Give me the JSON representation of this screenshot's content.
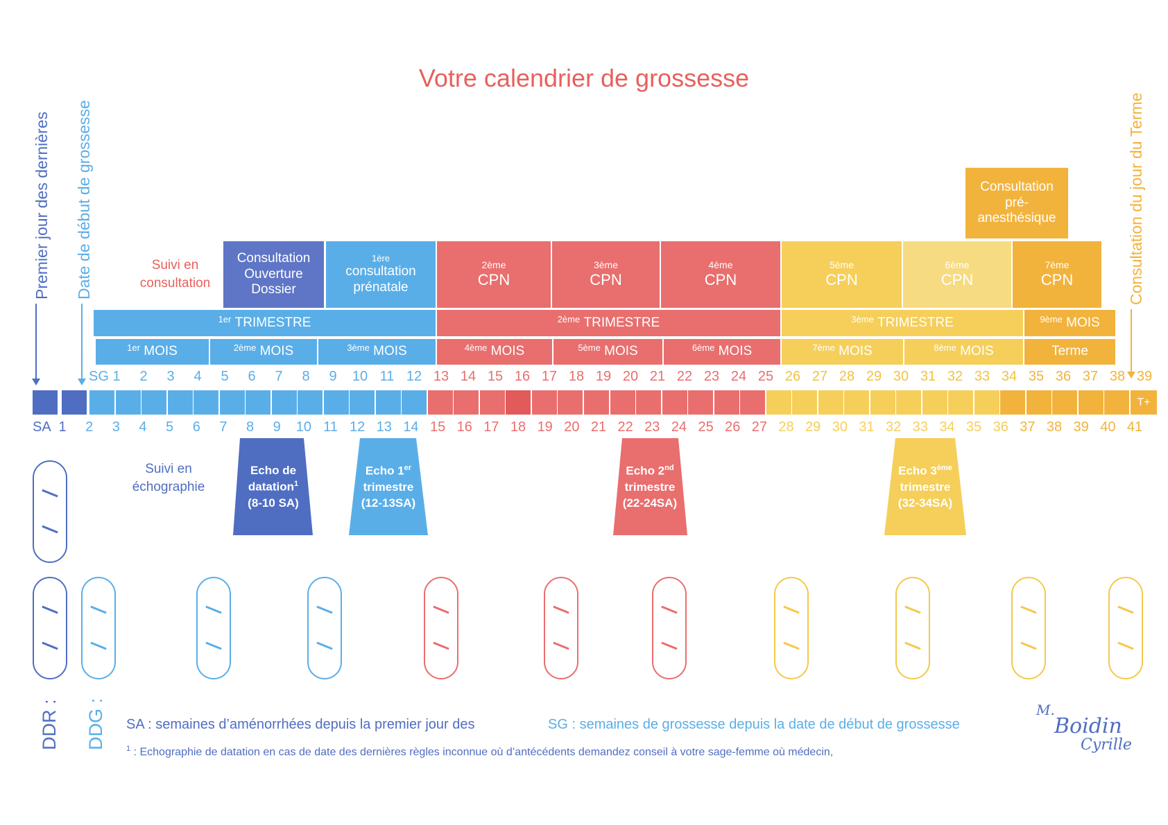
{
  "title": "Votre calendrier de grossesse",
  "colors": {
    "dark_blue": "#4f6ec2",
    "blue": "#5aaee8",
    "red": "#e96e6e",
    "yellow": "#f5cf5a",
    "orange": "#f2b33c",
    "title": "#e8605c"
  },
  "vertical_labels": {
    "ddr_arrow": "Premier jour des dernières",
    "ddg_arrow": "Date de début de grossesse",
    "terme_arrow": "Consultation du jour du Terme"
  },
  "suivi_consultation": "Suivi en consultation",
  "suivi_echographie": "Suivi en échographie",
  "consultations": {
    "c1": "Consultation Ouverture Dossier",
    "c2_sup": "1ère",
    "c2": "consultation prénatale",
    "cpn2_sup": "2ème",
    "cpn3_sup": "3ème",
    "cpn4_sup": "4ème",
    "cpn5_sup": "5ème",
    "cpn6_sup": "6ème",
    "cpn7_sup": "7ème",
    "cpn": "CPN",
    "pre_anesth": "Consultation pré-anesthésique"
  },
  "trimestres": {
    "t1_sup": "1er",
    "t2_sup": "2ème",
    "t3_sup": "3ème",
    "word": "TRIMESTRE",
    "m9_sup": "9ème",
    "mois_word": "MOIS"
  },
  "mois": {
    "m1": "1er",
    "m2": "2ème",
    "m3": "3ème",
    "m4": "4ème",
    "m5": "5ème",
    "m6": "6ème",
    "m7": "7ème",
    "m8": "8ème",
    "word": "MOIS",
    "terme": "Terme"
  },
  "sg_label": "SG",
  "sa_label": "SA",
  "t_plus": "T+",
  "sg_numbers": [
    "1",
    "2",
    "3",
    "4",
    "5",
    "6",
    "7",
    "8",
    "9",
    "10",
    "11",
    "12",
    "13",
    "14",
    "15",
    "16",
    "17",
    "18",
    "19",
    "20",
    "21",
    "22",
    "23",
    "24",
    "25",
    "26",
    "27",
    "28",
    "29",
    "30",
    "31",
    "32",
    "33",
    "34",
    "35",
    "36",
    "37",
    "38",
    "39"
  ],
  "sa_numbers": [
    "1",
    "2",
    "3",
    "4",
    "5",
    "6",
    "7",
    "8",
    "9",
    "10",
    "11",
    "12",
    "13",
    "14",
    "15",
    "16",
    "17",
    "18",
    "19",
    "20",
    "21",
    "22",
    "23",
    "24",
    "25",
    "26",
    "27",
    "28",
    "29",
    "30",
    "31",
    "32",
    "33",
    "34",
    "35",
    "36",
    "37",
    "38",
    "39",
    "40",
    "41"
  ],
  "echo": {
    "e1_a": "Echo de",
    "e1_b": "datation",
    "e1_sup": "1",
    "e1_c": "(8-10 SA)",
    "e2_a": "Echo 1",
    "e2_sup": "er",
    "e2_b": "trimestre",
    "e2_c": "(12-13SA)",
    "e3_a": "Echo 2",
    "e3_sup": "nd",
    "e3_b": "trimestre",
    "e3_c": "(22-24SA)",
    "e4_a": "Echo 3",
    "e4_sup": "ème",
    "e4_b": "trimestre",
    "e4_c": "(32-34SA)"
  },
  "ddr_label": "DDR :",
  "ddg_label": "DDG :",
  "legend": {
    "sa": "SA : semaines d’aménorrhées depuis la premier jour des",
    "sg": "SG : semaines de grossesse depuis la date de début de grossesse",
    "note_sup": "1",
    "note": ": Echographie de datation en cas de date des dernières règles inconnue où d’antécédents demandez conseil à votre sage-femme où médecin,"
  },
  "signature": {
    "a": "M.",
    "b": "Boidin",
    "c": "Cyrille"
  }
}
